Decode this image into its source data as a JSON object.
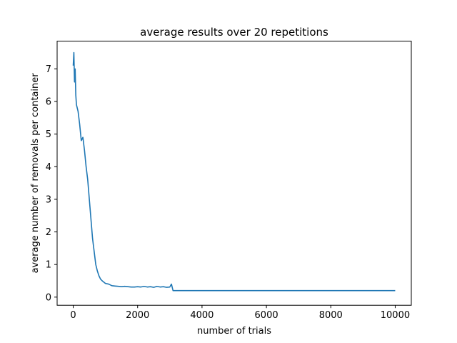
{
  "chart_data": {
    "type": "line",
    "title": "average results over 20 repetitions",
    "xlabel": "number of trials",
    "ylabel": "average number of removals per container",
    "xlim": [
      -500,
      10500
    ],
    "ylim": [
      -0.25,
      7.85
    ],
    "x_ticks": [
      0,
      2000,
      4000,
      6000,
      8000,
      10000
    ],
    "y_ticks": [
      0,
      1,
      2,
      3,
      4,
      5,
      6,
      7
    ],
    "x_tick_labels": [
      "0",
      "2000",
      "4000",
      "6000",
      "8000",
      "10000"
    ],
    "y_tick_labels": [
      "0",
      "1",
      "2",
      "3",
      "4",
      "5",
      "6",
      "7"
    ],
    "grid": false,
    "colors": {
      "series": "#1f77b4",
      "axes": "#000000",
      "background": "#ffffff"
    },
    "series": [
      {
        "x": [
          0,
          20,
          40,
          60,
          80,
          100,
          150,
          200,
          250,
          300,
          350,
          400,
          450,
          500,
          550,
          600,
          650,
          700,
          750,
          800,
          850,
          900,
          1000,
          1100,
          1200,
          1300,
          1400,
          1500,
          1600,
          1700,
          1800,
          1900,
          2000,
          2100,
          2200,
          2300,
          2400,
          2500,
          2600,
          2700,
          2800,
          2900,
          3000,
          3050,
          3100,
          3200,
          4000,
          5000,
          6000,
          7000,
          8000,
          9000,
          10000
        ],
        "values": [
          7.1,
          7.5,
          6.6,
          7.0,
          6.2,
          5.9,
          5.7,
          5.3,
          4.8,
          4.9,
          4.5,
          4.0,
          3.6,
          3.0,
          2.4,
          1.8,
          1.4,
          1.0,
          0.8,
          0.65,
          0.55,
          0.5,
          0.42,
          0.4,
          0.35,
          0.34,
          0.33,
          0.32,
          0.33,
          0.32,
          0.31,
          0.31,
          0.32,
          0.31,
          0.33,
          0.31,
          0.32,
          0.3,
          0.33,
          0.31,
          0.32,
          0.3,
          0.31,
          0.4,
          0.2,
          0.2,
          0.2,
          0.2,
          0.2,
          0.2,
          0.2,
          0.2,
          0.2
        ]
      }
    ]
  }
}
